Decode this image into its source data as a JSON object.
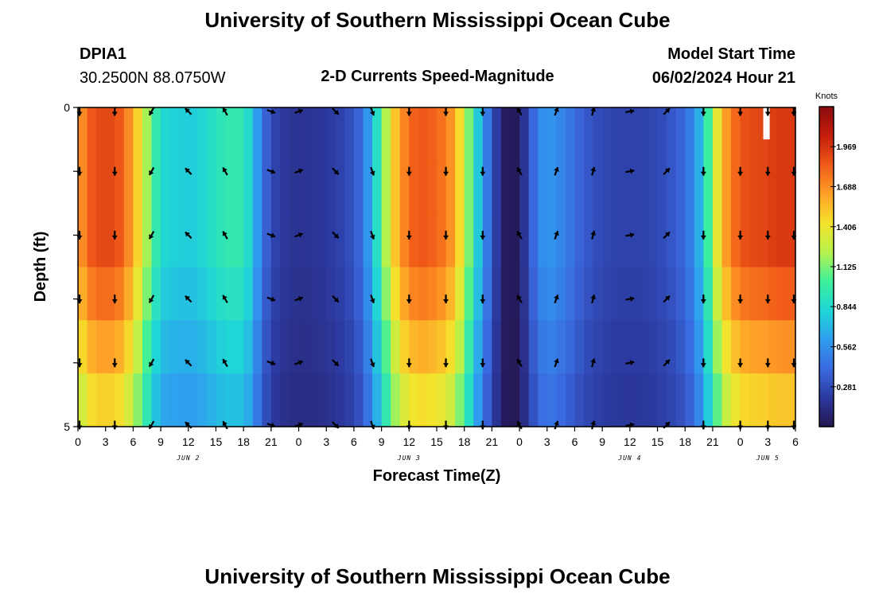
{
  "header": {
    "title": "University of Southern Mississippi Ocean Cube",
    "station": "DPIA1",
    "coords": "30.2500N  88.0750W",
    "subtitle": "2-D Currents Speed-Magnitude",
    "start_label": "Model Start Time",
    "start_value": "06/02/2024 Hour 21"
  },
  "footer": {
    "title": "University of Southern Mississippi Ocean Cube"
  },
  "chart_data": {
    "type": "heatmap",
    "title": "2-D Currents Speed-Magnitude",
    "xlabel": "Forecast Time(Z)",
    "ylabel": "Depth (ft)",
    "x_tick_labels": [
      "0",
      "3",
      "6",
      "9",
      "12",
      "15",
      "18",
      "21",
      "0",
      "3",
      "6",
      "9",
      "12",
      "15",
      "18",
      "21",
      "0",
      "3",
      "6",
      "9",
      "12",
      "15",
      "18",
      "21",
      "0",
      "3",
      "6"
    ],
    "x_range_hours": [
      0,
      78
    ],
    "date_labels": [
      {
        "text": "JUN 2",
        "hour": 12
      },
      {
        "text": "JUN 3",
        "hour": 36
      },
      {
        "text": "JUN 4",
        "hour": 60
      },
      {
        "text": "JUN 5",
        "hour": 75
      }
    ],
    "y_tick_labels": [
      "0",
      "5"
    ],
    "ylim": [
      0,
      5
    ],
    "depth_levels": [
      0,
      1,
      2,
      3,
      4,
      5
    ],
    "colorbar": {
      "label": "Knots",
      "range": [
        0,
        2.25
      ],
      "tick_values": [
        0.281,
        0.562,
        0.844,
        1.125,
        1.406,
        1.688,
        1.969
      ],
      "tick_labels": [
        "0.281",
        "0.562",
        "0.844",
        "1.125",
        "1.406",
        "1.688",
        "1.969"
      ],
      "colors": [
        "#241550",
        "#2c3aa0",
        "#3a6ae0",
        "#2f9ef0",
        "#1fd6d6",
        "#3ef09a",
        "#b6f24c",
        "#f5e22c",
        "#ffa028",
        "#f05a18",
        "#c41e0c",
        "#8a0c0c"
      ]
    },
    "speed_profile_knots": {
      "hours": [
        0,
        1,
        2,
        3,
        4,
        5,
        6,
        7,
        8,
        9,
        10,
        11,
        12,
        13,
        14,
        15,
        16,
        17,
        18,
        19,
        20,
        21,
        22,
        23,
        24,
        25,
        26,
        27,
        28,
        29,
        30,
        31,
        32,
        33,
        34,
        35,
        36,
        37,
        38,
        39,
        40,
        41,
        42,
        43,
        44,
        45,
        46,
        47,
        48,
        49,
        50,
        51,
        52,
        53,
        54,
        55,
        56,
        57,
        58,
        59,
        60,
        61,
        62,
        63,
        64,
        65,
        66,
        67,
        68,
        69,
        70,
        71,
        72,
        73,
        74,
        75,
        76,
        77,
        78
      ],
      "values": [
        1.6,
        1.8,
        1.9,
        1.9,
        1.9,
        1.8,
        1.6,
        1.35,
        1.05,
        0.85,
        0.8,
        0.8,
        0.78,
        0.8,
        0.85,
        0.9,
        0.95,
        0.95,
        0.95,
        0.75,
        0.45,
        0.28,
        0.2,
        0.18,
        0.17,
        0.17,
        0.18,
        0.2,
        0.22,
        0.26,
        0.32,
        0.45,
        0.7,
        1.05,
        1.4,
        1.65,
        1.8,
        1.85,
        1.85,
        1.8,
        1.75,
        1.6,
        1.3,
        0.95,
        0.6,
        0.35,
        0.08,
        0.0,
        0.05,
        0.3,
        0.5,
        0.6,
        0.55,
        0.5,
        0.42,
        0.35,
        0.3,
        0.27,
        0.25,
        0.24,
        0.24,
        0.24,
        0.25,
        0.27,
        0.3,
        0.35,
        0.42,
        0.55,
        0.8,
        1.2,
        1.55,
        1.75,
        1.85,
        1.9,
        1.9,
        1.92,
        1.95,
        1.95,
        1.95
      ]
    },
    "depth_factor": [
      1.0,
      1.0,
      1.0,
      0.94,
      0.86,
      0.78
    ],
    "vector_hours": [
      0,
      4,
      8,
      12,
      16,
      21,
      24,
      28,
      32,
      36,
      40,
      44,
      48,
      52,
      56,
      60,
      64,
      68,
      72,
      75,
      78
    ],
    "vector_directions_deg": [
      180,
      180,
      210,
      315,
      330,
      110,
      70,
      135,
      160,
      180,
      180,
      180,
      330,
      20,
      15,
      80,
      45,
      180,
      180,
      180,
      180
    ],
    "missing_region": {
      "hour_start": 74.5,
      "hour_end": 75.2,
      "depth_start": 0,
      "depth_end": 0.5
    }
  }
}
